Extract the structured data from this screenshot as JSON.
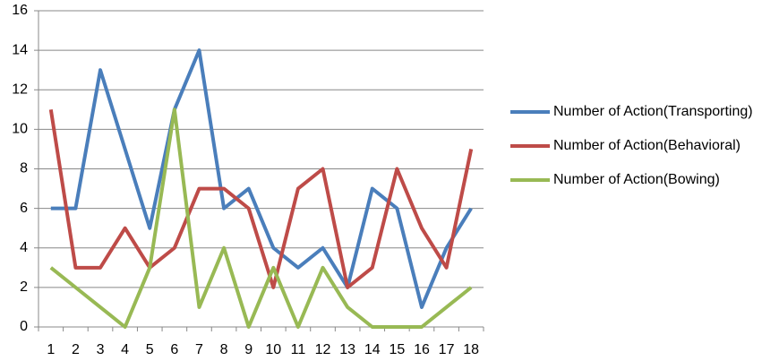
{
  "chart_data": {
    "type": "line",
    "categories": [
      1,
      2,
      3,
      4,
      5,
      6,
      7,
      8,
      9,
      10,
      11,
      12,
      13,
      14,
      15,
      16,
      17,
      18
    ],
    "series": [
      {
        "name": "Number of Action(Transporting)",
        "color": "#4a7ebb",
        "values": [
          6,
          6,
          13,
          9,
          5,
          11,
          14,
          6,
          7,
          4,
          3,
          4,
          2,
          7,
          6,
          1,
          4,
          6
        ]
      },
      {
        "name": "Number of Action(Behavioral)",
        "color": "#be4b48",
        "values": [
          11,
          3,
          3,
          5,
          3,
          4,
          7,
          7,
          6,
          2,
          7,
          8,
          2,
          3,
          8,
          5,
          3,
          9
        ]
      },
      {
        "name": "Number of Action(Bowing)",
        "color": "#98b954",
        "values": [
          3,
          2,
          1,
          0,
          3,
          11,
          1,
          4,
          0,
          3,
          0,
          3,
          1,
          0,
          0,
          0,
          1,
          2
        ]
      }
    ],
    "ylim": [
      0,
      16
    ],
    "yticks": [
      0,
      2,
      4,
      6,
      8,
      10,
      12,
      14,
      16
    ],
    "grid": true
  }
}
